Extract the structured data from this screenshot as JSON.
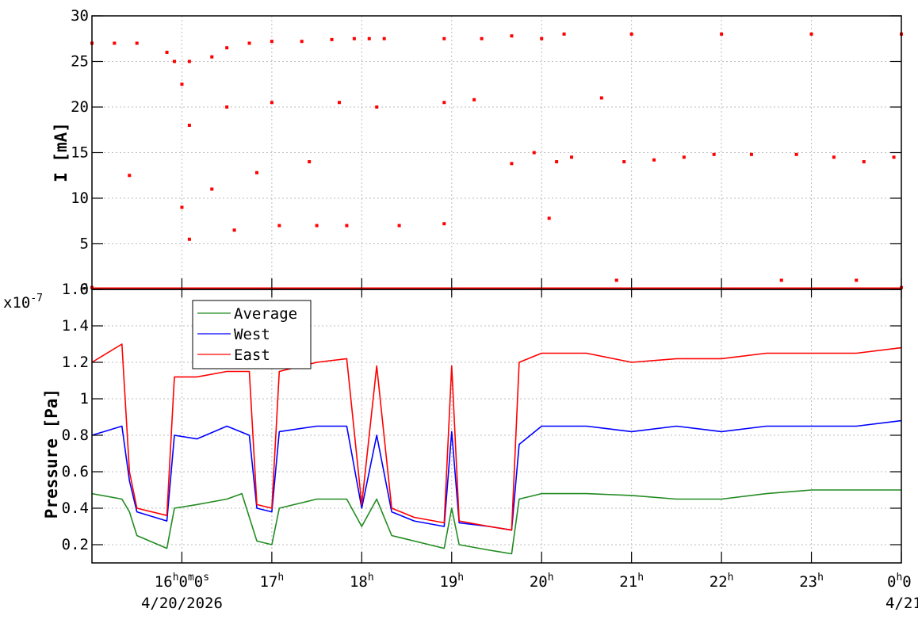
{
  "chart_data": [
    {
      "type": "scatter",
      "ylabel": "I [mA]",
      "ylim": [
        0,
        30
      ],
      "y_ticks": [
        "0",
        "5",
        "10",
        "15",
        "20",
        "25",
        "30"
      ],
      "xlim": [
        "15:00",
        "24:00"
      ],
      "grid": true,
      "series": [
        {
          "color": "#ff0000",
          "description_points": [
            [
              "15:00",
              27.0
            ],
            [
              "15:15",
              27.0
            ],
            [
              "15:30",
              27.0
            ],
            [
              "15:50",
              26.0
            ],
            [
              "15:55",
              25.0
            ],
            [
              "16:00",
              22.5
            ],
            [
              "16:05",
              25.0
            ],
            [
              "16:20",
              25.5
            ],
            [
              "16:30",
              26.5
            ],
            [
              "16:45",
              27.0
            ],
            [
              "17:00",
              27.2
            ],
            [
              "17:20",
              27.2
            ],
            [
              "17:40",
              27.4
            ],
            [
              "17:55",
              27.5
            ],
            [
              "18:05",
              27.5
            ],
            [
              "18:15",
              27.5
            ],
            [
              "18:55",
              27.5
            ],
            [
              "19:20",
              27.5
            ],
            [
              "19:40",
              27.8
            ],
            [
              "20:00",
              27.5
            ],
            [
              "20:15",
              28.0
            ],
            [
              "21:00",
              28.0
            ],
            [
              "22:00",
              28.0
            ],
            [
              "23:00",
              28.0
            ],
            [
              "24:00",
              28.0
            ],
            [
              "15:25",
              12.5
            ],
            [
              "16:00",
              9.0
            ],
            [
              "16:05",
              5.5
            ],
            [
              "16:05",
              18.0
            ],
            [
              "16:20",
              11.0
            ],
            [
              "16:30",
              20.0
            ],
            [
              "16:35",
              6.5
            ],
            [
              "16:50",
              12.8
            ],
            [
              "17:00",
              20.5
            ],
            [
              "17:05",
              7.0
            ],
            [
              "17:25",
              14.0
            ],
            [
              "17:30",
              7.0
            ],
            [
              "17:45",
              20.5
            ],
            [
              "17:50",
              7.0
            ],
            [
              "18:10",
              20.0
            ],
            [
              "18:25",
              7.0
            ],
            [
              "18:55",
              20.5
            ],
            [
              "18:55",
              7.2
            ],
            [
              "19:15",
              20.8
            ],
            [
              "19:40",
              13.8
            ],
            [
              "19:55",
              15.0
            ],
            [
              "20:05",
              7.8
            ],
            [
              "20:10",
              14.0
            ],
            [
              "20:20",
              14.5
            ],
            [
              "20:40",
              21.0
            ],
            [
              "20:55",
              14.0
            ],
            [
              "21:15",
              14.2
            ],
            [
              "21:35",
              14.5
            ],
            [
              "21:55",
              14.8
            ],
            [
              "22:20",
              14.8
            ],
            [
              "22:50",
              14.8
            ],
            [
              "23:15",
              14.5
            ],
            [
              "23:35",
              14.0
            ],
            [
              "23:55",
              14.5
            ],
            [
              "15:00",
              0.2
            ],
            [
              "24:00",
              0.2
            ],
            [
              "20:50",
              1.0
            ],
            [
              "22:40",
              1.0
            ],
            [
              "23:30",
              1.0
            ]
          ]
        }
      ]
    },
    {
      "type": "line",
      "ylabel": "Pressure [Pa]",
      "y_exponent_label": "x10",
      "y_exponent": "-7",
      "ylim": [
        0.1,
        1.6
      ],
      "y_ticks": [
        "0.2",
        "0.4",
        "0.6",
        "0.8",
        "1",
        "1.2",
        "1.4",
        "1.6"
      ],
      "xlim": [
        "15:00",
        "24:00"
      ],
      "grid": true,
      "legend_position": "top-left",
      "x_ticks": [
        {
          "x": "16:00",
          "hour": "16",
          "h": "h",
          "rest": "0",
          "m": "m",
          "rest2": "0",
          "s": "s"
        },
        {
          "x": "17:00",
          "hour": "17",
          "h": "h"
        },
        {
          "x": "18:00",
          "hour": "18",
          "h": "h"
        },
        {
          "x": "19:00",
          "hour": "19",
          "h": "h"
        },
        {
          "x": "20:00",
          "hour": "20",
          "h": "h"
        },
        {
          "x": "21:00",
          "hour": "21",
          "h": "h"
        },
        {
          "x": "22:00",
          "hour": "22",
          "h": "h"
        },
        {
          "x": "23:00",
          "hour": "23",
          "h": "h"
        },
        {
          "x": "24:00",
          "hour": "0",
          "h": "h",
          "rest": "0"
        }
      ],
      "x_dates": [
        {
          "x": "16:00",
          "text": "4/20/2026"
        },
        {
          "x": "24:00",
          "text": "4/21"
        }
      ],
      "series": [
        {
          "name": "Average",
          "color": "#228b22",
          "points": [
            [
              "15:00",
              0.48
            ],
            [
              "15:20",
              0.45
            ],
            [
              "15:25",
              0.38
            ],
            [
              "15:30",
              0.25
            ],
            [
              "15:50",
              0.18
            ],
            [
              "15:55",
              0.4
            ],
            [
              "16:10",
              0.42
            ],
            [
              "16:30",
              0.45
            ],
            [
              "16:40",
              0.48
            ],
            [
              "16:50",
              0.22
            ],
            [
              "17:00",
              0.2
            ],
            [
              "17:05",
              0.4
            ],
            [
              "17:30",
              0.45
            ],
            [
              "17:50",
              0.45
            ],
            [
              "18:00",
              0.3
            ],
            [
              "18:10",
              0.45
            ],
            [
              "18:20",
              0.25
            ],
            [
              "18:35",
              0.22
            ],
            [
              "18:55",
              0.18
            ],
            [
              "19:00",
              0.4
            ],
            [
              "19:05",
              0.2
            ],
            [
              "19:25",
              0.17
            ],
            [
              "19:40",
              0.15
            ],
            [
              "19:45",
              0.45
            ],
            [
              "20:00",
              0.48
            ],
            [
              "20:30",
              0.48
            ],
            [
              "21:00",
              0.47
            ],
            [
              "21:30",
              0.45
            ],
            [
              "22:00",
              0.45
            ],
            [
              "22:30",
              0.48
            ],
            [
              "23:00",
              0.5
            ],
            [
              "23:30",
              0.5
            ],
            [
              "24:00",
              0.5
            ]
          ]
        },
        {
          "name": "West",
          "color": "#0000ff",
          "points": [
            [
              "15:00",
              0.8
            ],
            [
              "15:20",
              0.85
            ],
            [
              "15:25",
              0.55
            ],
            [
              "15:30",
              0.38
            ],
            [
              "15:50",
              0.33
            ],
            [
              "15:55",
              0.8
            ],
            [
              "16:10",
              0.78
            ],
            [
              "16:30",
              0.85
            ],
            [
              "16:45",
              0.8
            ],
            [
              "16:50",
              0.4
            ],
            [
              "17:00",
              0.38
            ],
            [
              "17:05",
              0.82
            ],
            [
              "17:30",
              0.85
            ],
            [
              "17:50",
              0.85
            ],
            [
              "18:00",
              0.4
            ],
            [
              "18:10",
              0.8
            ],
            [
              "18:20",
              0.38
            ],
            [
              "18:35",
              0.33
            ],
            [
              "18:55",
              0.3
            ],
            [
              "19:00",
              0.82
            ],
            [
              "19:05",
              0.32
            ],
            [
              "19:25",
              0.3
            ],
            [
              "19:40",
              0.28
            ],
            [
              "19:45",
              0.75
            ],
            [
              "20:00",
              0.85
            ],
            [
              "20:30",
              0.85
            ],
            [
              "21:00",
              0.82
            ],
            [
              "21:30",
              0.85
            ],
            [
              "22:00",
              0.82
            ],
            [
              "22:30",
              0.85
            ],
            [
              "23:00",
              0.85
            ],
            [
              "23:30",
              0.85
            ],
            [
              "24:00",
              0.88
            ]
          ]
        },
        {
          "name": "East",
          "color": "#ff0000",
          "points": [
            [
              "15:00",
              1.2
            ],
            [
              "15:20",
              1.3
            ],
            [
              "15:25",
              0.6
            ],
            [
              "15:30",
              0.4
            ],
            [
              "15:50",
              0.36
            ],
            [
              "15:55",
              1.12
            ],
            [
              "16:10",
              1.12
            ],
            [
              "16:30",
              1.15
            ],
            [
              "16:45",
              1.15
            ],
            [
              "16:50",
              0.42
            ],
            [
              "17:00",
              0.4
            ],
            [
              "17:05",
              1.15
            ],
            [
              "17:30",
              1.2
            ],
            [
              "17:50",
              1.22
            ],
            [
              "18:00",
              0.42
            ],
            [
              "18:10",
              1.18
            ],
            [
              "18:20",
              0.4
            ],
            [
              "18:35",
              0.35
            ],
            [
              "18:55",
              0.32
            ],
            [
              "19:00",
              1.18
            ],
            [
              "19:05",
              0.33
            ],
            [
              "19:25",
              0.3
            ],
            [
              "19:40",
              0.28
            ],
            [
              "19:45",
              1.2
            ],
            [
              "20:00",
              1.25
            ],
            [
              "20:30",
              1.25
            ],
            [
              "21:00",
              1.2
            ],
            [
              "21:30",
              1.22
            ],
            [
              "22:00",
              1.22
            ],
            [
              "22:30",
              1.25
            ],
            [
              "23:00",
              1.25
            ],
            [
              "23:30",
              1.25
            ],
            [
              "24:00",
              1.28
            ]
          ]
        }
      ]
    }
  ]
}
